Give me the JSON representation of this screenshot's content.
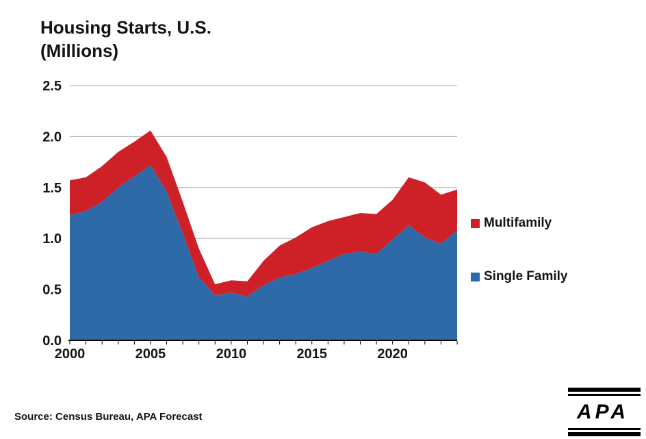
{
  "title": "Housing Starts, U.S.\n(Millions)",
  "source": "Source: Census Bureau, APA Forecast",
  "logo": {
    "text": "APA"
  },
  "colors": {
    "multifamily": "#CD2127",
    "single_family": "#2F6AA8",
    "gridline": "#ABABAB",
    "axis": "#000000",
    "text": "#141414"
  },
  "legend": [
    {
      "label": "Multifamily",
      "color": "#CD2127"
    },
    {
      "label": "Single Family",
      "color": "#2F6AA8"
    }
  ],
  "chart_data": {
    "type": "area",
    "stacked": true,
    "title": "Housing Starts, U.S. (Millions)",
    "xlabel": "",
    "ylabel": "",
    "x": [
      2000,
      2001,
      2002,
      2003,
      2004,
      2005,
      2006,
      2007,
      2008,
      2009,
      2010,
      2011,
      2012,
      2013,
      2014,
      2015,
      2016,
      2017,
      2018,
      2019,
      2020,
      2021,
      2022,
      2023,
      2024
    ],
    "series": [
      {
        "name": "Single Family",
        "color": "#2F6AA8",
        "values": [
          1.23,
          1.27,
          1.36,
          1.5,
          1.61,
          1.72,
          1.46,
          1.05,
          0.62,
          0.44,
          0.47,
          0.43,
          0.54,
          0.62,
          0.65,
          0.71,
          0.78,
          0.85,
          0.87,
          0.85,
          0.99,
          1.13,
          1.01,
          0.95,
          1.08
        ]
      },
      {
        "name": "Multifamily",
        "color": "#CD2127",
        "values": [
          0.34,
          0.33,
          0.35,
          0.35,
          0.34,
          0.34,
          0.34,
          0.31,
          0.28,
          0.11,
          0.12,
          0.15,
          0.24,
          0.31,
          0.36,
          0.4,
          0.39,
          0.36,
          0.38,
          0.39,
          0.39,
          0.47,
          0.54,
          0.48,
          0.4
        ]
      }
    ],
    "ylim": [
      0,
      2.5
    ],
    "yticks": [
      0,
      0.5,
      1.0,
      1.5,
      2.0,
      2.5
    ],
    "ytick_labels": [
      "0.0",
      "0.5",
      "1.0",
      "1.5",
      "2.0",
      "2.5"
    ],
    "xticks": [
      2000,
      2005,
      2010,
      2015,
      2020
    ],
    "xtick_minor_every_year": true,
    "grid": true,
    "legend_position": "right"
  }
}
